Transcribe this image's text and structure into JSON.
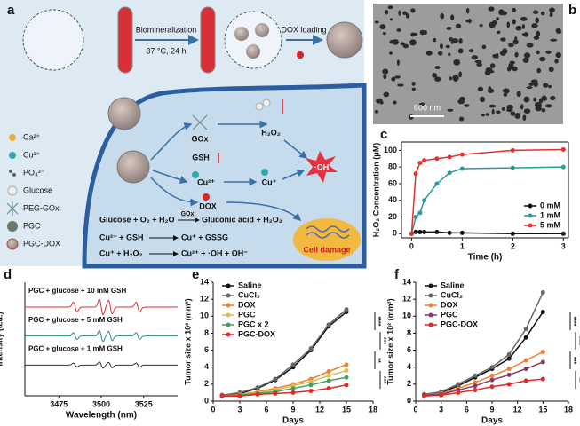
{
  "schematic": {
    "panel": "a",
    "steps": [
      "Biomineralization",
      "37 °C, 24 h",
      "DOX loading"
    ],
    "legend": [
      "Ca²⁺",
      "Cu²⁺",
      "PO₄³⁻",
      "Glucose",
      "PEG-GOx",
      "PGC",
      "PGC-DOX"
    ],
    "species": {
      "gox": "GOx",
      "gsh": "GSH",
      "h2o2": "H₂O₂",
      "cu2": "Cu²⁺",
      "cu1": "Cu⁺",
      "oh": "·OH",
      "dox": "DOX"
    },
    "outcome": "Cell damage",
    "equations": [
      {
        "left": "Glucose + O₂ + H₂O",
        "catalyst": "GOx",
        "right": "Gluconic acid + H₂O₂"
      },
      {
        "left": "Cu²⁺ + GSH",
        "right": "Cu⁺ + GSSG"
      },
      {
        "left": "Cu⁺ + H₂O₂",
        "right": "Cu²⁺ + ·OH + OH⁻"
      }
    ]
  },
  "sem": {
    "panel": "b",
    "scale_bar": "600 nm"
  },
  "chart_data": [
    {
      "type": "line",
      "panel": "c",
      "x_label": "Time (h)",
      "y_label": "H₂O₂ Concentration (μM)",
      "x": [
        0,
        0.083,
        0.167,
        0.25,
        0.5,
        0.75,
        1,
        2,
        3
      ],
      "xlim": [
        -0.2,
        3.1
      ],
      "xticks": [
        0,
        1,
        2,
        3
      ],
      "ylim": [
        -5,
        110
      ],
      "yticks": [
        0,
        20,
        40,
        60,
        80,
        100
      ],
      "box": true,
      "legend": "lower right",
      "series": [
        {
          "name": "0 mM",
          "color": "#111111",
          "values": [
            0,
            2,
            2,
            2,
            2,
            1,
            1,
            0,
            0
          ]
        },
        {
          "name": "1 mM",
          "color": "#2a9a9a",
          "values": [
            0,
            20,
            25,
            40,
            60,
            73,
            78,
            79,
            80
          ]
        },
        {
          "name": "5 mM",
          "color": "#e8302a",
          "values": [
            0,
            72,
            85,
            88,
            90,
            92,
            95,
            100,
            101
          ]
        }
      ]
    },
    {
      "type": "spectrum",
      "panel": "d",
      "x_label": "Wavelength (nm)",
      "y_label": "Intensity (a.u.)",
      "xlim": [
        3455,
        3545
      ],
      "xticks": [
        3475,
        3500,
        3525
      ],
      "traces": [
        {
          "name": "PGC + glucose + 10 mM GSH",
          "color": "#e03030"
        },
        {
          "name": "PGC + glucose + 5 mM GSH",
          "color": "#2a8a8a"
        },
        {
          "name": "PGC + glucose + 1 mM GSH",
          "color": "#333333"
        }
      ]
    },
    {
      "type": "line",
      "panel": "e",
      "x_label": "Days",
      "y_label": "Tumor size x 10² (mm³)",
      "x": [
        1,
        3,
        5,
        7,
        9,
        11,
        13,
        15
      ],
      "xlim": [
        0,
        18
      ],
      "xticks": [
        0,
        3,
        6,
        9,
        12,
        15,
        18
      ],
      "ylim": [
        0,
        14
      ],
      "yticks": [
        0,
        2,
        4,
        6,
        8,
        10,
        12,
        14
      ],
      "box": false,
      "legend": "upper left",
      "series": [
        {
          "name": "Saline",
          "color": "#111111",
          "values": [
            0.7,
            0.9,
            1.5,
            2.5,
            4,
            6,
            8.8,
            10.5
          ]
        },
        {
          "name": "CuCl₂",
          "color": "#666666",
          "values": [
            0.7,
            1,
            1.6,
            2.6,
            4.3,
            6.2,
            9,
            10.8
          ]
        },
        {
          "name": "DOX",
          "color": "#f08030",
          "values": [
            0.6,
            0.8,
            1.1,
            1.5,
            2,
            2.6,
            3.5,
            4.3
          ]
        },
        {
          "name": "PGC",
          "color": "#d8c050",
          "values": [
            0.6,
            0.7,
            1,
            1.3,
            1.8,
            2.3,
            3,
            3.6
          ]
        },
        {
          "name": "PGC x 2",
          "color": "#4a9a60",
          "values": [
            0.6,
            0.7,
            0.9,
            1.1,
            1.5,
            1.9,
            2.4,
            2.8
          ]
        },
        {
          "name": "PGC-DOX",
          "color": "#e02828",
          "values": [
            0.6,
            0.6,
            0.8,
            0.9,
            1,
            1.2,
            1.5,
            1.9
          ]
        }
      ],
      "annotations": [
        "****",
        "***",
        "**",
        "***"
      ]
    },
    {
      "type": "line",
      "panel": "f",
      "x_label": "Days",
      "y_label": "Tumor size x 10² (mm³)",
      "x": [
        1,
        3,
        5,
        7,
        9,
        11,
        13,
        15
      ],
      "xlim": [
        0,
        18
      ],
      "xticks": [
        0,
        3,
        6,
        9,
        12,
        15,
        18
      ],
      "ylim": [
        0,
        14
      ],
      "yticks": [
        0,
        2,
        4,
        6,
        8,
        10,
        12,
        14
      ],
      "box": false,
      "legend": "upper left",
      "series": [
        {
          "name": "Saline",
          "color": "#111111",
          "values": [
            0.8,
            1,
            1.8,
            2.8,
            3.8,
            5,
            7.5,
            10.5
          ]
        },
        {
          "name": "CuCl₂",
          "color": "#666666",
          "values": [
            0.8,
            1.1,
            2,
            3,
            4,
            5.5,
            8.5,
            12.8
          ]
        },
        {
          "name": "DOX",
          "color": "#f08030",
          "values": [
            0.7,
            0.9,
            1.5,
            2.2,
            3,
            3.8,
            4.8,
            5.8
          ]
        },
        {
          "name": "PGC",
          "color": "#8a3a6a",
          "values": [
            0.7,
            0.8,
            1.3,
            1.8,
            2.5,
            3.1,
            3.8,
            4.6
          ]
        },
        {
          "name": "PGC-DOX",
          "color": "#e02828",
          "values": [
            0.6,
            0.7,
            1,
            1.3,
            1.7,
            2,
            2.4,
            2.6
          ]
        }
      ],
      "annotations": [
        "****",
        "****",
        "***",
        "**"
      ]
    }
  ]
}
